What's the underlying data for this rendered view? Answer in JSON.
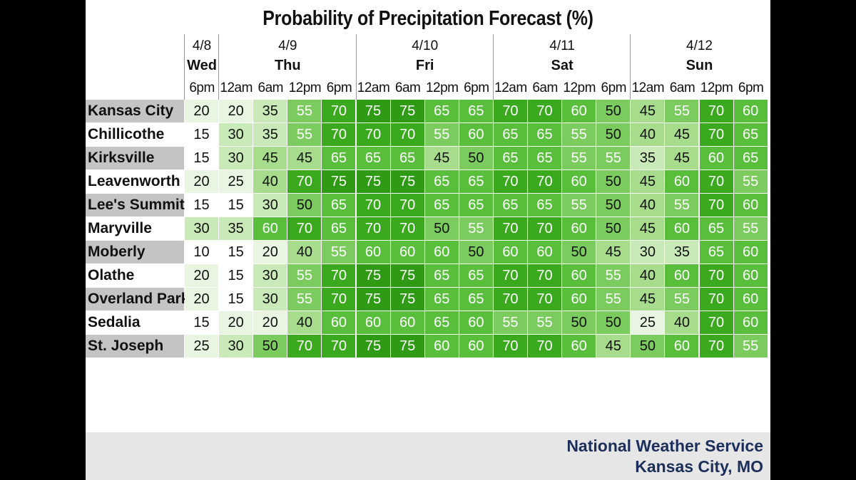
{
  "title": "Probability of Precipitation Forecast (%)",
  "footer": {
    "line1": "National Weather Service",
    "line2": "Kansas City, MO"
  },
  "colors": {
    "city_band": "#c4c4c4",
    "footer_text": "#1c2f5a",
    "scale": {
      "10": "#ffffff",
      "15": "#ffffff",
      "20": "#e8f5e1",
      "25": "#e8f5e1",
      "30": "#c9e9b8",
      "35": "#c9e9b8",
      "40": "#a6dc8c",
      "45": "#a6dc8c",
      "50": "#7ccb5e",
      "55": "#7ccb5e",
      "60": "#59be3c",
      "65": "#59be3c",
      "70": "#3aa91d",
      "75": "#2f9a14"
    }
  },
  "chart_data": {
    "type": "table",
    "title": "Probability of Precipitation Forecast (%)",
    "days": [
      {
        "date": "4/8",
        "day": "Wed",
        "times": [
          "6pm"
        ]
      },
      {
        "date": "4/9",
        "day": "Thu",
        "times": [
          "12am",
          "6am",
          "12pm",
          "6pm"
        ]
      },
      {
        "date": "4/10",
        "day": "Fri",
        "times": [
          "12am",
          "6am",
          "12pm",
          "6pm"
        ]
      },
      {
        "date": "4/11",
        "day": "Sat",
        "times": [
          "12am",
          "6am",
          "12pm",
          "6pm"
        ]
      },
      {
        "date": "4/12",
        "day": "Sun",
        "times": [
          "12am",
          "6am",
          "12pm",
          "6pm"
        ]
      }
    ],
    "rows": [
      {
        "city": "Kansas City",
        "values": [
          20,
          20,
          35,
          55,
          70,
          75,
          75,
          65,
          65,
          70,
          70,
          60,
          50,
          45,
          55,
          70,
          60
        ]
      },
      {
        "city": "Chillicothe",
        "values": [
          15,
          30,
          35,
          55,
          70,
          70,
          70,
          55,
          60,
          65,
          65,
          55,
          50,
          40,
          45,
          70,
          65
        ]
      },
      {
        "city": "Kirksville",
        "values": [
          15,
          30,
          45,
          45,
          65,
          65,
          65,
          45,
          50,
          65,
          65,
          55,
          55,
          35,
          45,
          60,
          65
        ]
      },
      {
        "city": "Leavenworth",
        "values": [
          20,
          25,
          40,
          70,
          75,
          75,
          75,
          65,
          65,
          70,
          70,
          60,
          50,
          45,
          60,
          70,
          55
        ]
      },
      {
        "city": "Lee's Summit",
        "values": [
          15,
          15,
          30,
          50,
          65,
          70,
          70,
          65,
          65,
          65,
          65,
          55,
          50,
          40,
          55,
          70,
          60
        ]
      },
      {
        "city": "Maryville",
        "values": [
          30,
          35,
          60,
          70,
          65,
          70,
          70,
          50,
          55,
          70,
          70,
          60,
          50,
          45,
          60,
          65,
          55
        ]
      },
      {
        "city": "Moberly",
        "values": [
          10,
          15,
          20,
          40,
          55,
          60,
          60,
          60,
          50,
          60,
          60,
          50,
          45,
          30,
          35,
          65,
          60
        ]
      },
      {
        "city": "Olathe",
        "values": [
          20,
          15,
          30,
          55,
          70,
          75,
          75,
          65,
          65,
          70,
          70,
          60,
          55,
          40,
          60,
          70,
          60
        ]
      },
      {
        "city": "Overland Park",
        "values": [
          20,
          15,
          30,
          55,
          70,
          75,
          75,
          65,
          65,
          70,
          70,
          60,
          55,
          45,
          55,
          70,
          60
        ]
      },
      {
        "city": "Sedalia",
        "values": [
          15,
          20,
          20,
          40,
          60,
          60,
          60,
          65,
          60,
          55,
          55,
          50,
          50,
          25,
          40,
          70,
          60
        ]
      },
      {
        "city": "St. Joseph",
        "values": [
          25,
          30,
          50,
          70,
          70,
          75,
          75,
          60,
          60,
          70,
          70,
          60,
          45,
          50,
          60,
          70,
          55
        ]
      }
    ]
  }
}
